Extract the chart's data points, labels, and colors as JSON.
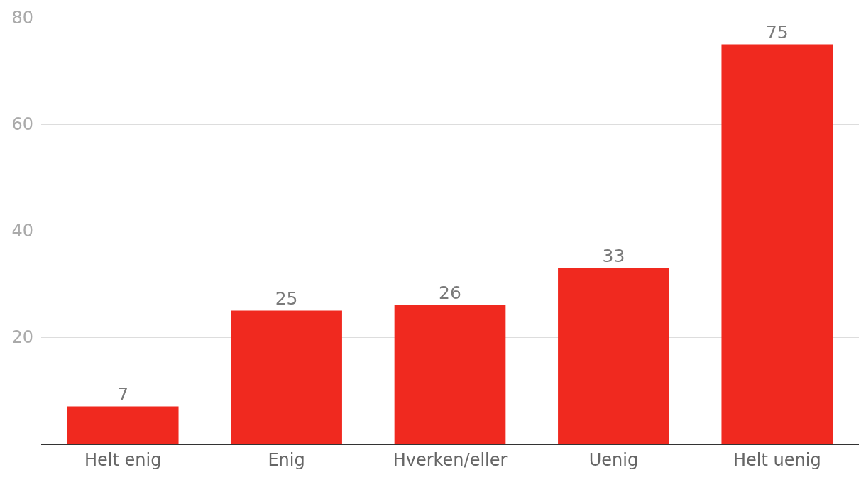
{
  "chart_data": {
    "type": "bar",
    "categories": [
      "Helt enig",
      "Enig",
      "Hverken/eller",
      "Uenig",
      "Helt uenig"
    ],
    "values": [
      7,
      25,
      26,
      33,
      75
    ],
    "color": "#f0291f",
    "ylim": [
      0,
      80
    ],
    "yticks": [
      20,
      40,
      60,
      80
    ],
    "grid": "y",
    "data_labels": true
  }
}
